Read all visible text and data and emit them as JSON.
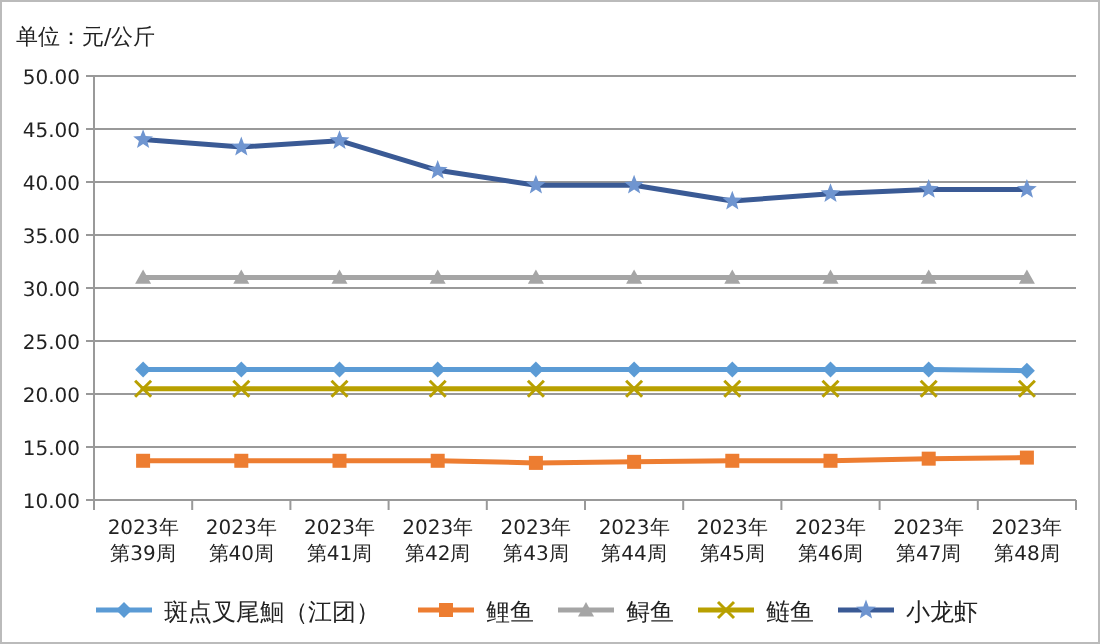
{
  "chart_data": {
    "type": "line",
    "ylabel": "单位：元/公斤",
    "categories": [
      "2023年第39周",
      "2023年第40周",
      "2023年第41周",
      "2023年第42周",
      "2023年第43周",
      "2023年第44周",
      "2023年第45周",
      "2023年第46周",
      "2023年第47周",
      "2023年第48周"
    ],
    "series": [
      {
        "name": "斑点叉尾鮰（江团）",
        "color": "#5b9bd5",
        "marker": "diamond",
        "values": [
          22.3,
          22.3,
          22.3,
          22.3,
          22.3,
          22.3,
          22.3,
          22.3,
          22.3,
          22.2
        ]
      },
      {
        "name": "鲤鱼",
        "color": "#ed7d31",
        "marker": "square",
        "values": [
          13.7,
          13.7,
          13.7,
          13.7,
          13.5,
          13.6,
          13.7,
          13.7,
          13.9,
          14.0
        ]
      },
      {
        "name": "鲟鱼",
        "color": "#a5a5a5",
        "marker": "triangle",
        "values": [
          31.0,
          31.0,
          31.0,
          31.0,
          31.0,
          31.0,
          31.0,
          31.0,
          31.0,
          31.0
        ]
      },
      {
        "name": "鲢鱼",
        "color": "#b8a000",
        "marker": "cross",
        "values": [
          20.5,
          20.5,
          20.5,
          20.5,
          20.5,
          20.5,
          20.5,
          20.5,
          20.5,
          20.5
        ]
      },
      {
        "name": "小龙虾",
        "color": "#3a5a95",
        "marker": "star",
        "values": [
          44.0,
          43.3,
          43.9,
          41.1,
          39.7,
          39.7,
          38.2,
          38.9,
          39.3,
          39.3
        ]
      }
    ],
    "ylim": [
      10,
      50
    ],
    "yticks": [
      {
        "value": 10,
        "label": "10.00"
      },
      {
        "value": 15,
        "label": "15.00"
      },
      {
        "value": 20,
        "label": "20.00"
      },
      {
        "value": 25,
        "label": "25.00"
      },
      {
        "value": 30,
        "label": "30.00"
      },
      {
        "value": 35,
        "label": "35.00"
      },
      {
        "value": 40,
        "label": "40.00"
      },
      {
        "value": 45,
        "label": "45.00"
      },
      {
        "value": 50,
        "label": "50.00"
      }
    ],
    "grid": "y",
    "legend": "bottom",
    "line_style": "solid"
  }
}
